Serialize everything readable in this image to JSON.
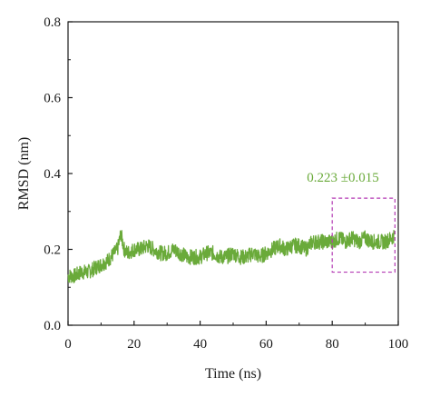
{
  "chart_data": {
    "type": "line",
    "title": "",
    "xlabel": "Time (ns)",
    "ylabel": "RMSD (nm)",
    "xlim": [
      0,
      100
    ],
    "ylim": [
      0,
      0.8
    ],
    "xticks": [
      0,
      20,
      40,
      60,
      80,
      100
    ],
    "yticks": [
      0.0,
      0.2,
      0.4,
      0.6,
      0.8
    ],
    "xtick_labels": [
      "0",
      "20",
      "40",
      "60",
      "80",
      "100"
    ],
    "ytick_labels": [
      "0.0",
      "0.2",
      "0.4",
      "0.6",
      "0.8"
    ],
    "grid": false,
    "legend": "none",
    "series": [
      {
        "color": "#6aaa3a",
        "x": [
          0,
          2,
          4,
          6,
          8,
          10,
          12,
          14,
          15,
          16,
          17,
          18,
          20,
          22,
          24,
          26,
          28,
          30,
          32,
          34,
          36,
          38,
          40,
          42,
          44,
          46,
          48,
          50,
          52,
          54,
          56,
          58,
          60,
          62,
          64,
          66,
          68,
          70,
          72,
          74,
          76,
          78,
          80,
          82,
          84,
          86,
          88,
          90,
          92,
          94,
          96,
          98,
          99
        ],
        "y": [
          0.13,
          0.13,
          0.14,
          0.14,
          0.15,
          0.16,
          0.17,
          0.19,
          0.2,
          0.24,
          0.2,
          0.19,
          0.2,
          0.2,
          0.21,
          0.2,
          0.19,
          0.19,
          0.2,
          0.19,
          0.18,
          0.18,
          0.18,
          0.19,
          0.19,
          0.18,
          0.18,
          0.19,
          0.18,
          0.18,
          0.19,
          0.18,
          0.19,
          0.2,
          0.21,
          0.2,
          0.21,
          0.21,
          0.2,
          0.22,
          0.22,
          0.22,
          0.22,
          0.23,
          0.22,
          0.23,
          0.22,
          0.23,
          0.22,
          0.22,
          0.22,
          0.23,
          0.24
        ]
      }
    ],
    "annotation": {
      "text": "0.223 ±0.015",
      "color": "#6aaa3a",
      "box_x": [
        80,
        99
      ],
      "box_y": [
        0.14,
        0.335
      ],
      "box_color": "#b43ab4"
    }
  }
}
